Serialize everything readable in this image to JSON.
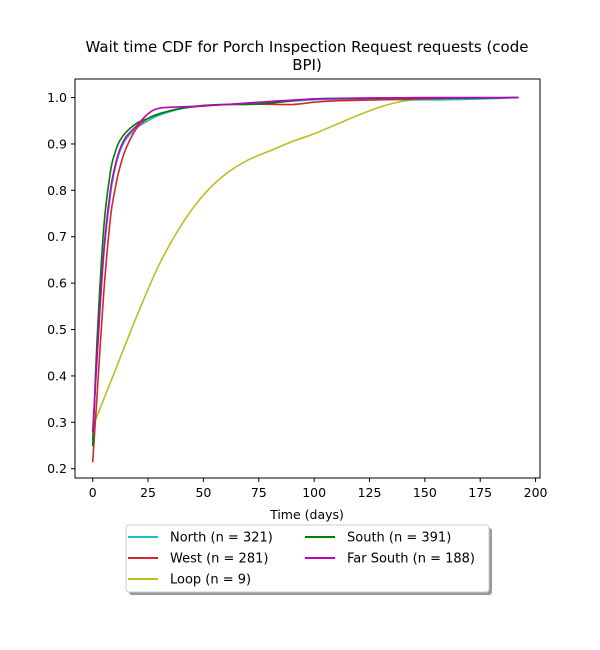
{
  "chart_data": {
    "type": "line",
    "title_lines": [
      "Wait time CDF for Porch Inspection Request  requests (code",
      "BPI)"
    ],
    "xlabel": "Time (days)",
    "ylabel": "",
    "xlim": [
      -8,
      202
    ],
    "ylim": [
      0.18,
      1.04
    ],
    "xticks": [
      0,
      25,
      50,
      75,
      100,
      125,
      150,
      175,
      200
    ],
    "yticks": [
      0.2,
      0.3,
      0.4,
      0.5,
      0.6,
      0.7,
      0.8,
      0.9,
      1.0
    ],
    "ytick_labels": [
      "0.2",
      "0.3",
      "0.4",
      "0.5",
      "0.6",
      "0.7",
      "0.8",
      "0.9",
      "1.0"
    ],
    "grid": false,
    "legend_position": "below plot, two columns",
    "series": [
      {
        "name": "North (n = 321)",
        "color": "#17becf",
        "x": [
          0,
          2,
          5,
          8,
          10,
          12,
          15,
          20,
          25,
          30,
          40,
          50,
          60,
          75,
          100,
          120,
          150,
          175,
          192
        ],
        "y": [
          0.26,
          0.45,
          0.66,
          0.79,
          0.845,
          0.88,
          0.91,
          0.935,
          0.95,
          0.962,
          0.976,
          0.982,
          0.985,
          0.988,
          0.995,
          0.997,
          0.995,
          0.997,
          1.0
        ]
      },
      {
        "name": "South (n = 391)",
        "color": "#008000",
        "x": [
          0,
          2,
          5,
          8,
          10,
          12,
          15,
          20,
          25,
          30,
          40,
          50,
          60,
          75,
          100,
          120,
          150,
          175,
          192
        ],
        "y": [
          0.25,
          0.48,
          0.72,
          0.84,
          0.88,
          0.905,
          0.925,
          0.945,
          0.955,
          0.965,
          0.977,
          0.983,
          0.985,
          0.986,
          0.997,
          0.998,
          0.999,
          0.999,
          1.0
        ]
      },
      {
        "name": "West (n = 281)",
        "color": "#d62728",
        "x": [
          0,
          2,
          5,
          8,
          10,
          12,
          15,
          20,
          25,
          30,
          40,
          50,
          60,
          75,
          90,
          100,
          110,
          130,
          160,
          192
        ],
        "y": [
          0.215,
          0.36,
          0.58,
          0.74,
          0.8,
          0.845,
          0.89,
          0.935,
          0.955,
          0.965,
          0.977,
          0.982,
          0.985,
          0.986,
          0.985,
          0.99,
          0.993,
          0.995,
          0.998,
          1.0
        ]
      },
      {
        "name": "Far South (n = 188)",
        "color": "#bf00bf",
        "x": [
          0,
          2,
          5,
          8,
          10,
          12,
          15,
          20,
          25,
          30,
          40,
          50,
          60,
          75,
          100,
          120,
          150,
          192
        ],
        "y": [
          0.28,
          0.44,
          0.67,
          0.8,
          0.85,
          0.885,
          0.915,
          0.94,
          0.965,
          0.977,
          0.98,
          0.982,
          0.985,
          0.99,
          0.997,
          0.999,
          1.0,
          1.0
        ]
      },
      {
        "name": "Loop (n = 9)",
        "color": "#bcbd22",
        "x": [
          0,
          10,
          20,
          30,
          40,
          50,
          60,
          70,
          80,
          90,
          100,
          110,
          120,
          130,
          140,
          150,
          165,
          180,
          192
        ],
        "y": [
          0.29,
          0.41,
          0.53,
          0.64,
          0.725,
          0.79,
          0.835,
          0.865,
          0.885,
          0.905,
          0.922,
          0.942,
          0.962,
          0.98,
          0.992,
          0.997,
          0.998,
          0.999,
          1.0
        ]
      }
    ],
    "legend_order": [
      0,
      2,
      4,
      1,
      3
    ]
  }
}
